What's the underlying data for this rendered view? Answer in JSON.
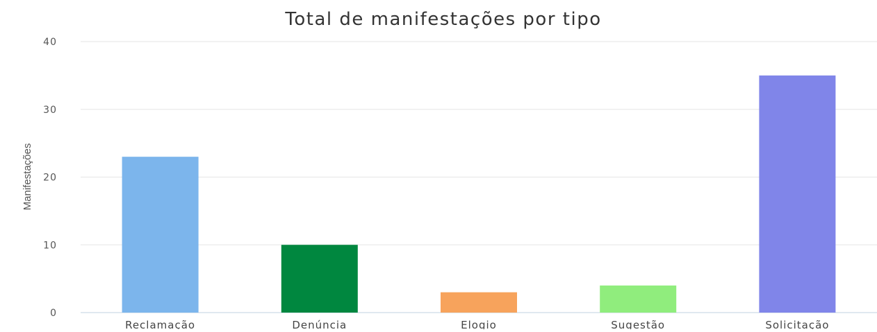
{
  "chart_data": {
    "type": "bar",
    "title": "Total de manifestações por tipo",
    "xlabel": "",
    "ylabel": "Manifestações",
    "categories": [
      "Reclamação",
      "Denúncia",
      "Elogio",
      "Sugestão",
      "Solicitação"
    ],
    "values": [
      23,
      10,
      3,
      4,
      35
    ],
    "colors": [
      "#7cb5ec",
      "#00873f",
      "#f7a35c",
      "#90ed7d",
      "#8085e9"
    ],
    "ylim": [
      0,
      40
    ],
    "yticks": [
      0,
      10,
      20,
      30,
      40
    ],
    "grid": true,
    "legend": "none"
  }
}
